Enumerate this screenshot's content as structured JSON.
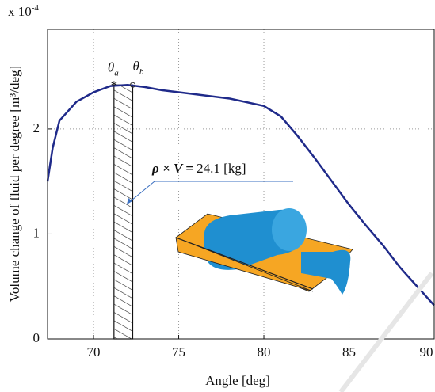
{
  "chart_data": {
    "type": "line",
    "y_multiplier": {
      "base": "x 10",
      "exp": "-4"
    },
    "y_label": "Volume change of fluid per degree [m³/deg]",
    "x_label": "Angle [deg]",
    "x": [
      67.3,
      67.6,
      68,
      69,
      70,
      71,
      72,
      73,
      74,
      76,
      78,
      80,
      81,
      82,
      83,
      84,
      85,
      86,
      87,
      88,
      89,
      90
    ],
    "series": [
      {
        "color": "#1f2a8a",
        "values": [
          1.5,
          1.82,
          2.08,
          2.26,
          2.35,
          2.41,
          2.42,
          2.4,
          2.37,
          2.33,
          2.29,
          2.22,
          2.12,
          1.93,
          1.72,
          1.5,
          1.28,
          1.08,
          0.89,
          0.68,
          0.5,
          0.32
        ]
      }
    ],
    "xlim": [
      67.3,
      90
    ],
    "ylim": [
      0,
      2.95
    ],
    "xticks": [
      70,
      75,
      80,
      85,
      90
    ],
    "yticks": [
      0,
      1,
      2
    ],
    "grid": true,
    "markers": {
      "a": {
        "x": 71.2,
        "y": 2.41,
        "symbol": "θ",
        "sub": "a"
      },
      "b": {
        "x": 72.3,
        "y": 2.42,
        "symbol": "θ",
        "sub": "b"
      }
    },
    "shaded": {
      "x": [
        71.2,
        72.3
      ],
      "height": 2.42
    },
    "annotation": {
      "lhs": "ρ × V =",
      "rhs": "24.1 [kg]"
    }
  }
}
